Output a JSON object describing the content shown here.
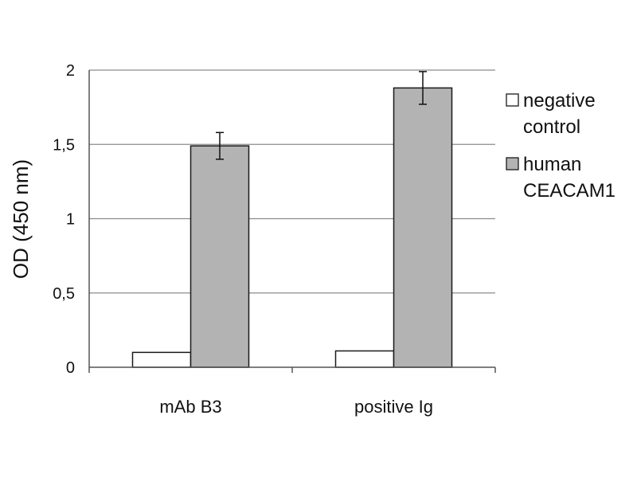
{
  "chart_data": {
    "type": "bar",
    "title": "",
    "xlabel": "",
    "ylabel": "OD (450 nm)",
    "ylim": [
      0,
      2
    ],
    "yticks": [
      {
        "value": 0,
        "label": "0"
      },
      {
        "value": 0.5,
        "label": "0,5"
      },
      {
        "value": 1,
        "label": "1"
      },
      {
        "value": 1.5,
        "label": "1,5"
      },
      {
        "value": 2,
        "label": "2"
      }
    ],
    "grid": true,
    "legend_position": "right",
    "categories": [
      "mAb B3",
      "positive Ig"
    ],
    "series": [
      {
        "name": "negative control",
        "legend_lines": [
          "negative",
          "control"
        ],
        "color": "#ffffff",
        "values": [
          0.1,
          0.11
        ],
        "errors": [
          null,
          null
        ]
      },
      {
        "name": "human CEACAM1",
        "legend_lines": [
          "human",
          "CEACAM1"
        ],
        "color": "#b3b3b3",
        "values": [
          1.49,
          1.88
        ],
        "errors": [
          0.09,
          0.11
        ]
      }
    ]
  }
}
